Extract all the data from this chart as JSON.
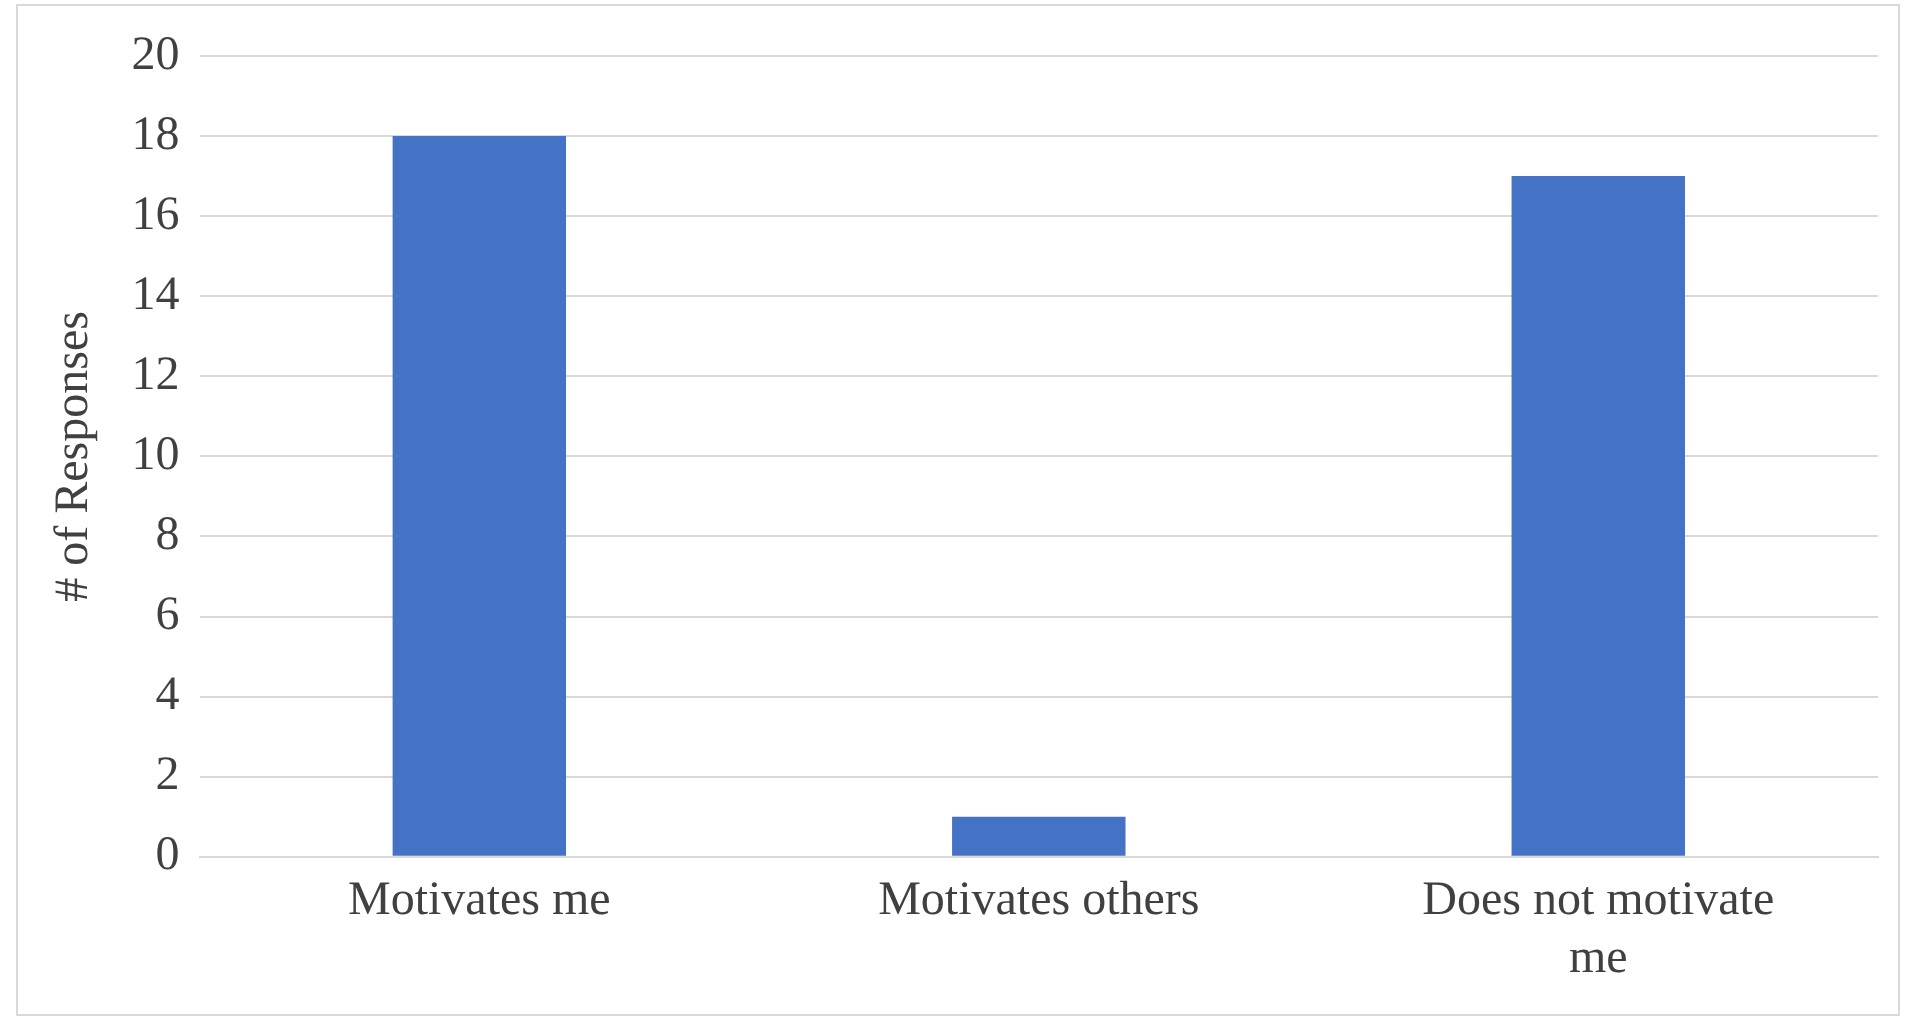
{
  "chart_data": {
    "type": "bar",
    "ylabel": "# of Responses",
    "categories": [
      "Motivates me",
      "Motivates others",
      "Does not motivate me"
    ],
    "values": [
      18,
      1,
      17
    ],
    "color": "#4472c4",
    "ylim": [
      0,
      20
    ],
    "yticks": [
      0,
      2,
      4,
      6,
      8,
      10,
      12,
      14,
      16,
      18,
      20
    ],
    "grid": "y"
  }
}
